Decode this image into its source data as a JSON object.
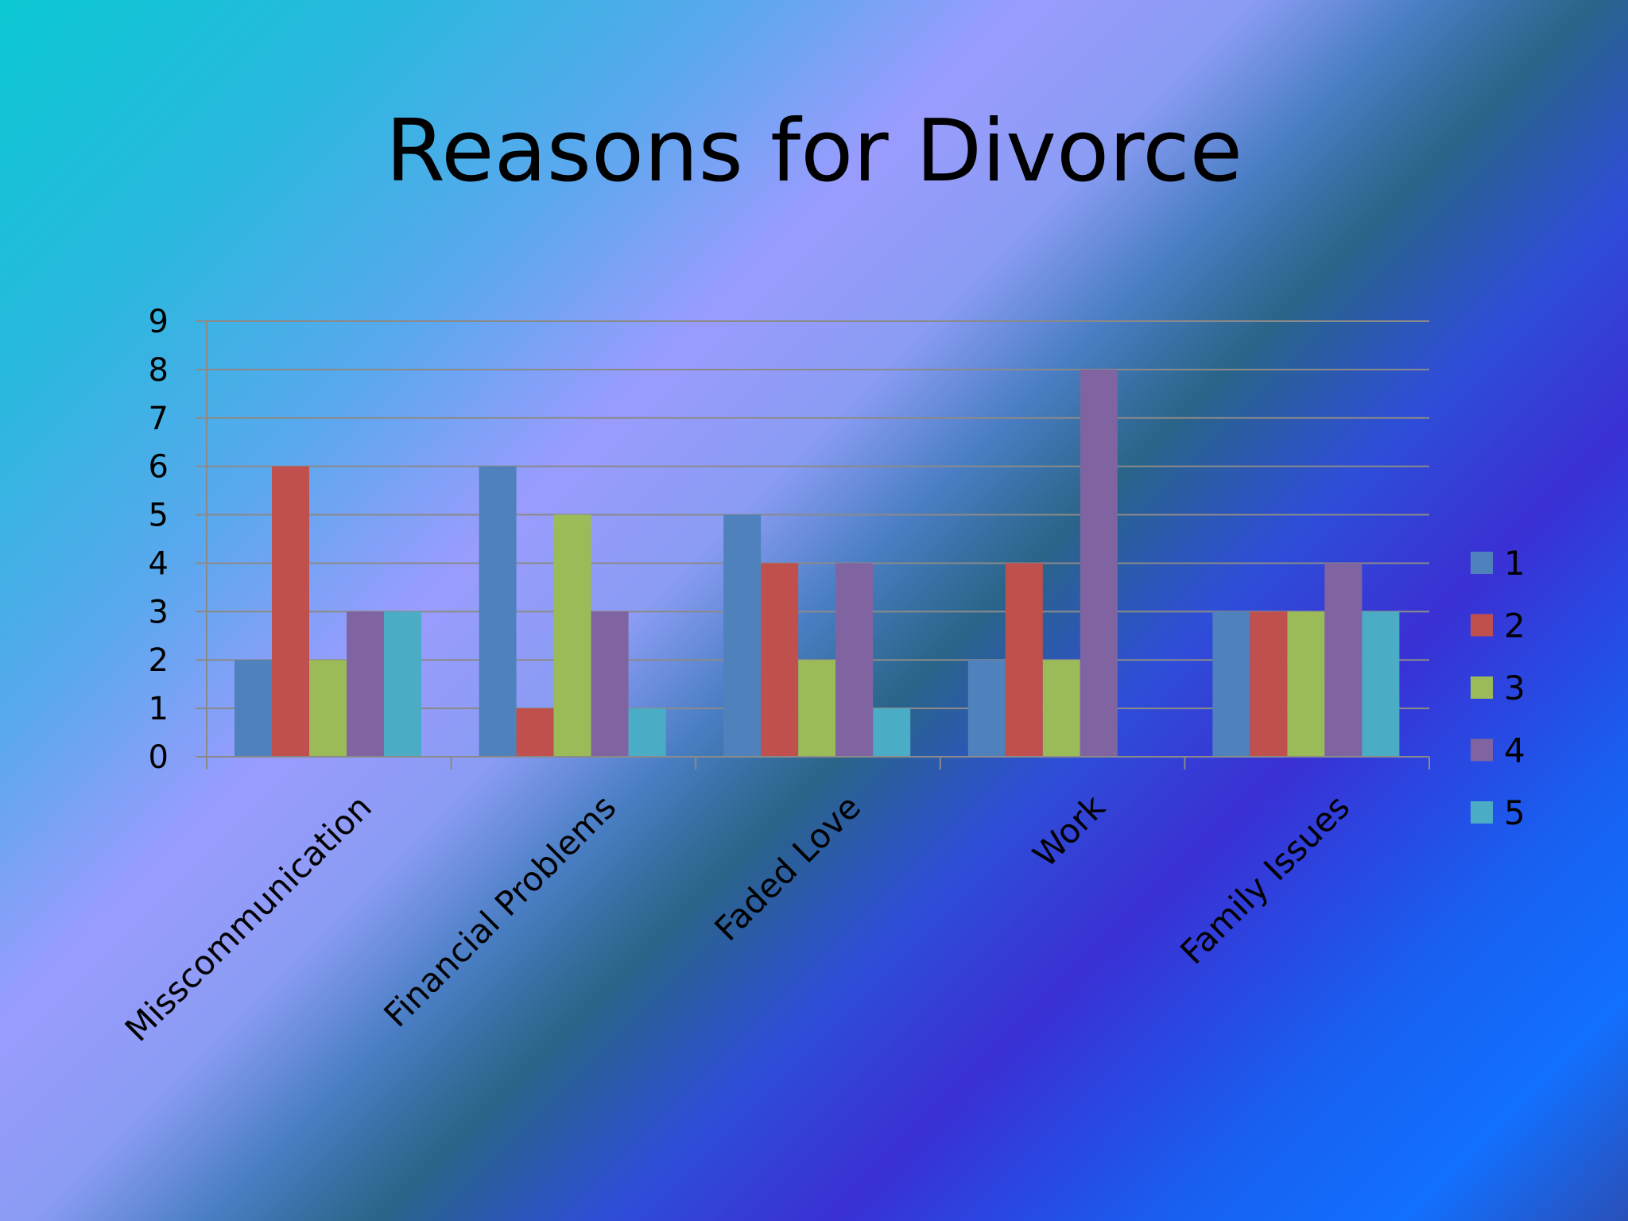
{
  "chart_data": {
    "type": "bar",
    "title": "Reasons for Divorce",
    "categories": [
      "Misscommunication",
      "Financial Problems",
      "Faded Love",
      "Work",
      "Family Issues"
    ],
    "series": [
      {
        "name": "1",
        "color": "#4f81bd",
        "values": [
          2,
          6,
          5,
          2,
          3
        ]
      },
      {
        "name": "2",
        "color": "#c0504d",
        "values": [
          6,
          1,
          4,
          4,
          3
        ]
      },
      {
        "name": "3",
        "color": "#9bbb59",
        "values": [
          2,
          5,
          2,
          2,
          3
        ]
      },
      {
        "name": "4",
        "color": "#8064a2",
        "values": [
          3,
          3,
          4,
          8,
          4
        ]
      },
      {
        "name": "5",
        "color": "#4bacc6",
        "values": [
          3,
          1,
          1,
          0,
          3
        ]
      }
    ],
    "ylim": [
      0,
      9
    ],
    "yticks": [
      0,
      1,
      2,
      3,
      4,
      5,
      6,
      7,
      8,
      9
    ],
    "grid": true,
    "legend": "right"
  }
}
